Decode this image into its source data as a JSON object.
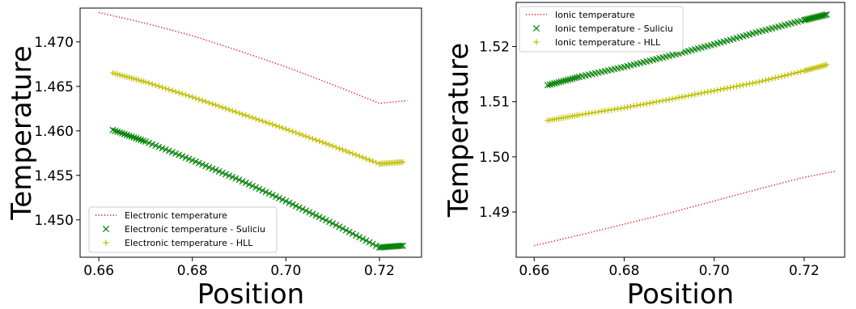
{
  "chart_data": [
    {
      "type": "scatter",
      "title": "",
      "xlabel": "Position",
      "ylabel": "Temperature",
      "xlim": [
        0.656,
        0.729
      ],
      "ylim": [
        1.4458,
        1.4738
      ],
      "xticks": [
        0.66,
        0.68,
        0.7,
        0.72
      ],
      "xtick_labels": [
        "0.66",
        "0.68",
        "0.70",
        "0.72"
      ],
      "yticks": [
        1.45,
        1.455,
        1.46,
        1.465,
        1.47
      ],
      "ytick_labels": [
        "1.450",
        "1.455",
        "1.460",
        "1.465",
        "1.470"
      ],
      "grid": false,
      "legend_position": "lower-left",
      "series": [
        {
          "name": "Electronic temperature",
          "style": "dotted-line",
          "color": "#ff0000",
          "x": [
            0.66,
            0.67,
            0.68,
            0.69,
            0.7,
            0.71,
            0.72,
            0.726
          ],
          "y": [
            1.4733,
            1.4721,
            1.4707,
            1.469,
            1.4672,
            1.4652,
            1.4631,
            1.4634
          ]
        },
        {
          "name": "Electronic temperature - Suliciu",
          "style": "x-markers",
          "color": "#008000",
          "x": [
            0.663,
            0.67,
            0.68,
            0.69,
            0.7,
            0.71,
            0.72,
            0.725
          ],
          "y": [
            1.4601,
            1.4588,
            1.4567,
            1.4545,
            1.4521,
            1.4496,
            1.4469,
            1.4471
          ]
        },
        {
          "name": "Electronic temperature - HLL",
          "style": "plus-markers",
          "color": "#bfbf00",
          "x": [
            0.663,
            0.67,
            0.68,
            0.69,
            0.7,
            0.71,
            0.72,
            0.725
          ],
          "y": [
            1.4665,
            1.4655,
            1.4638,
            1.462,
            1.4602,
            1.4583,
            1.4563,
            1.4565
          ]
        }
      ]
    },
    {
      "type": "scatter",
      "title": "",
      "xlabel": "Position",
      "ylabel": "Temperature",
      "xlim": [
        0.656,
        0.729
      ],
      "ylim": [
        1.4818,
        1.528
      ],
      "xticks": [
        0.66,
        0.68,
        0.7,
        0.72
      ],
      "xtick_labels": [
        "0.66",
        "0.68",
        "0.70",
        "0.72"
      ],
      "yticks": [
        1.49,
        1.5,
        1.51,
        1.52
      ],
      "ytick_labels": [
        "1.49",
        "1.50",
        "1.51",
        "1.52"
      ],
      "grid": false,
      "legend_position": "upper-left",
      "series": [
        {
          "name": "Ionic temperature",
          "style": "dotted-line",
          "color": "#ff0000",
          "x": [
            0.66,
            0.67,
            0.68,
            0.69,
            0.7,
            0.71,
            0.72,
            0.727
          ],
          "y": [
            1.4839,
            1.4858,
            1.4878,
            1.4898,
            1.492,
            1.4942,
            1.4963,
            1.4974
          ]
        },
        {
          "name": "Ionic temperature - Suliciu",
          "style": "x-markers",
          "color": "#008000",
          "x": [
            0.663,
            0.67,
            0.68,
            0.69,
            0.7,
            0.71,
            0.72,
            0.725
          ],
          "y": [
            1.513,
            1.5145,
            1.5163,
            1.5183,
            1.5204,
            1.5227,
            1.5248,
            1.5258
          ]
        },
        {
          "name": "Ionic temperature - HLL",
          "style": "plus-markers",
          "color": "#bfbf00",
          "x": [
            0.663,
            0.67,
            0.68,
            0.69,
            0.7,
            0.71,
            0.72,
            0.725
          ],
          "y": [
            1.5066,
            1.5076,
            1.5089,
            1.5104,
            1.512,
            1.5136,
            1.5156,
            1.5167
          ]
        }
      ]
    }
  ]
}
